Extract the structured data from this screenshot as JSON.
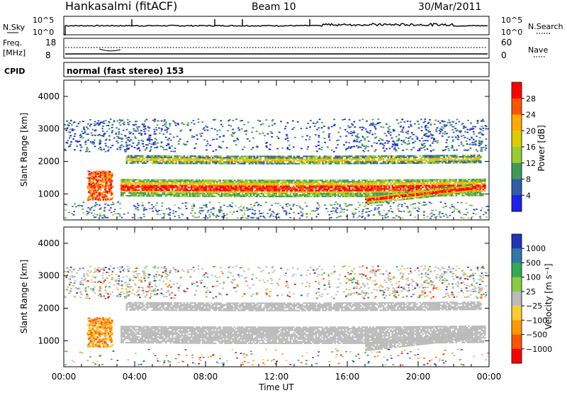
{
  "header": {
    "station": "Hankasalmi (fitACF)",
    "beam": "Beam 10",
    "date": "30/Mar/2011"
  },
  "noise_panel": {
    "left_label": "N.Sky",
    "right_label": "N.Search",
    "left_ticks": [
      "10^5",
      "10^0"
    ],
    "right_ticks": [
      "10^5",
      "10^0"
    ]
  },
  "freq_panel": {
    "left_label_1": "Freq.",
    "left_label_2": "[MHz]",
    "right_label": "Nave",
    "left_ticks": [
      "18",
      "8"
    ],
    "right_ticks": [
      "60",
      "0"
    ]
  },
  "cpid": {
    "label": "CPID",
    "text": "normal (fast stereo) 153"
  },
  "chart_data": [
    {
      "type": "heatmap",
      "title": "",
      "ylabel": "Slant Range [km]",
      "xlabel": "",
      "ylim": [
        200,
        4500
      ],
      "y_ticks": [
        "4000",
        "3000",
        "2000",
        "1000"
      ],
      "colorbar_label": "Power [dB]",
      "colorbar_ticks": [
        "28",
        "24",
        "20",
        "16",
        "12",
        "8",
        "4"
      ],
      "colorbar_colors": [
        "#ff0000",
        "#ff5500",
        "#ffaa00",
        "#ddcc00",
        "#99cc33",
        "#3f9a5a",
        "#2f5da8",
        "#1e20ee"
      ]
    },
    {
      "type": "heatmap",
      "title": "",
      "ylabel": "Slant Range [km]",
      "xlabel": "Time UT",
      "ylim": [
        200,
        4500
      ],
      "y_ticks": [
        "4000",
        "3000",
        "2000",
        "1000"
      ],
      "x_ticks": [
        "00:00",
        "04:00",
        "08:00",
        "12:00",
        "16:00",
        "20:00",
        "00:00"
      ],
      "colorbar_label": "Velocity [m s⁻¹]",
      "colorbar_ticks": [
        "1000",
        "500",
        "100",
        "25",
        "−25",
        "−100",
        "−500",
        "−1000"
      ],
      "colorbar_colors": [
        "#2233bb",
        "#3377aa",
        "#33aa55",
        "#88cc44",
        "#bbbbbb",
        "#ffcc33",
        "#ff9900",
        "#ff5500",
        "#ff0000"
      ]
    }
  ]
}
